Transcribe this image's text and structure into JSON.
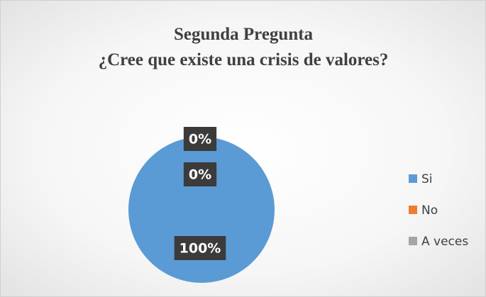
{
  "chart_data": {
    "type": "pie",
    "title": "Segunda Pregunta",
    "subtitle": "¿Cree que existe una crisis de valores?",
    "categories": [
      "Si",
      "No",
      "A veces"
    ],
    "values": [
      100,
      0,
      0
    ],
    "value_labels": [
      "100%",
      "0%",
      "0%"
    ],
    "colors": [
      "#5b9bd5",
      "#ed7d31",
      "#a5a5a5"
    ],
    "legend": "right"
  }
}
